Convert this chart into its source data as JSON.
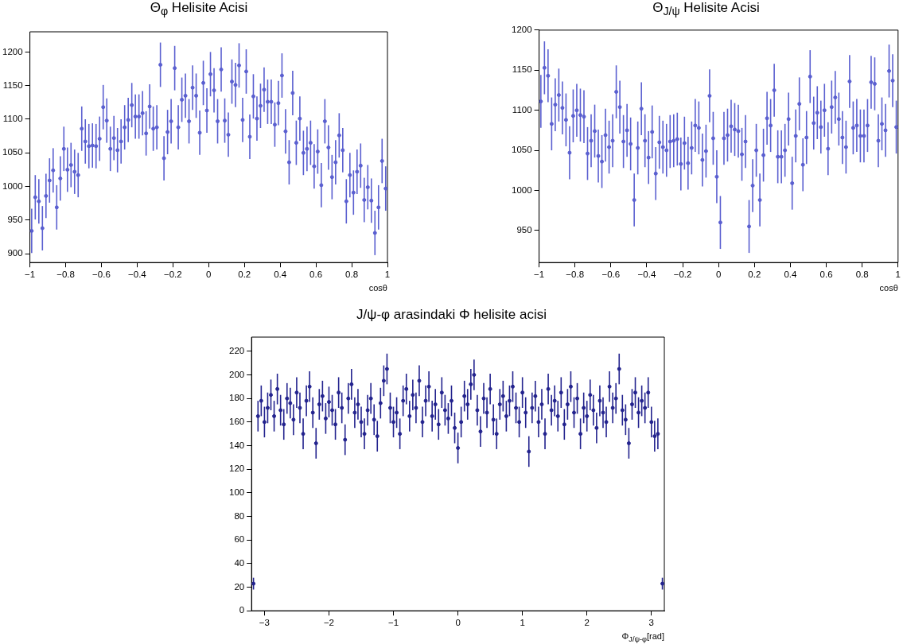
{
  "chart_data": [
    {
      "type": "scatter",
      "title": "Θ$_{φ}$ Helisite Acisi",
      "xlabel": "cosθ",
      "color": "#5a5fd0",
      "marker": "circle",
      "grid": false,
      "legend": false,
      "xlim": [
        -1,
        1
      ],
      "xticks": [
        {
          "value": -1,
          "label": "−1"
        },
        {
          "value": -0.8,
          "label": "−0.8"
        },
        {
          "value": -0.6,
          "label": "−0.6"
        },
        {
          "value": -0.4,
          "label": "−0.4"
        },
        {
          "value": -0.2,
          "label": "−0.2"
        },
        0,
        0.2,
        0.4,
        0.6,
        0.8,
        1
      ],
      "ylim": [
        887,
        1230
      ],
      "yticks": [
        900,
        950,
        1000,
        1050,
        1100,
        1150,
        1200
      ],
      "x": [
        -0.99,
        -0.97,
        -0.95,
        -0.93,
        -0.91,
        -0.89,
        -0.87,
        -0.85,
        -0.83,
        -0.81,
        -0.79,
        -0.77,
        -0.75,
        -0.73,
        -0.71,
        -0.69,
        -0.67,
        -0.65,
        -0.63,
        -0.61,
        -0.59,
        -0.57,
        -0.55,
        -0.53,
        -0.51,
        -0.49,
        -0.47,
        -0.45,
        -0.43,
        -0.41,
        -0.39,
        -0.37,
        -0.35,
        -0.33,
        -0.31,
        -0.29,
        -0.27,
        -0.25,
        -0.23,
        -0.21,
        -0.19,
        -0.17,
        -0.15,
        -0.13,
        -0.11,
        -0.09,
        -0.07,
        -0.05,
        -0.03,
        -0.01,
        0.01,
        0.03,
        0.05,
        0.07,
        0.09,
        0.11,
        0.13,
        0.15,
        0.17,
        0.19,
        0.21,
        0.23,
        0.25,
        0.27,
        0.29,
        0.31,
        0.33,
        0.35,
        0.37,
        0.39,
        0.41,
        0.43,
        0.45,
        0.47,
        0.49,
        0.51,
        0.53,
        0.55,
        0.57,
        0.59,
        0.61,
        0.63,
        0.65,
        0.67,
        0.69,
        0.71,
        0.73,
        0.75,
        0.77,
        0.79,
        0.81,
        0.83,
        0.85,
        0.87,
        0.89,
        0.91,
        0.93,
        0.95,
        0.97,
        0.99
      ],
      "values": [
        934,
        984,
        978,
        938,
        986,
        1009,
        1024,
        969,
        1012,
        1056,
        1025,
        1032,
        1022,
        1017,
        1086,
        1067,
        1060,
        1061,
        1060,
        1071,
        1118,
        1098,
        1056,
        1072,
        1054,
        1067,
        1088,
        1099,
        1121,
        1104,
        1104,
        1109,
        1079,
        1119,
        1086,
        1088,
        1181,
        1042,
        1081,
        1097,
        1176,
        1088,
        1129,
        1135,
        1097,
        1147,
        1135,
        1080,
        1154,
        1113,
        1167,
        1143,
        1097,
        1174,
        1098,
        1077,
        1156,
        1151,
        1180,
        1099,
        1171,
        1074,
        1134,
        1101,
        1120,
        1144,
        1126,
        1126,
        1092,
        1124,
        1165,
        1082,
        1036,
        1139,
        1065,
        1101,
        1050,
        1056,
        1065,
        1030,
        1052,
        1002,
        1097,
        1058,
        1014,
        1036,
        1076,
        1054,
        978,
        1017,
        991,
        1022,
        1031,
        980,
        999,
        979,
        931,
        969,
        1038,
        997
      ],
      "errors": [
        33,
        33,
        33,
        33,
        33,
        33,
        33,
        33,
        33,
        33,
        33,
        33,
        33,
        33,
        33,
        33,
        33,
        33,
        33,
        33,
        33,
        33,
        33,
        33,
        33,
        33,
        33,
        33,
        33,
        33,
        33,
        33,
        33,
        33,
        33,
        33,
        33,
        33,
        33,
        33,
        33,
        33,
        33,
        33,
        33,
        33,
        33,
        33,
        33,
        33,
        33,
        33,
        33,
        33,
        33,
        33,
        33,
        33,
        33,
        33,
        33,
        33,
        33,
        33,
        33,
        33,
        33,
        33,
        33,
        33,
        33,
        33,
        33,
        33,
        33,
        33,
        33,
        33,
        33,
        33,
        33,
        33,
        33,
        33,
        33,
        33,
        33,
        33,
        33,
        33,
        33,
        33,
        33,
        33,
        33,
        33,
        33,
        33,
        33,
        33
      ]
    },
    {
      "type": "scatter",
      "title": "Θ$_{J/ψ}$ Helisite Acisi",
      "xlabel": "cosθ",
      "color": "#5a5fd0",
      "marker": "circle",
      "grid": false,
      "legend": false,
      "xlim": [
        -1,
        1
      ],
      "xticks": [
        {
          "value": -1,
          "label": "−1"
        },
        {
          "value": -0.8,
          "label": "−0.8"
        },
        {
          "value": -0.6,
          "label": "−0.6"
        },
        {
          "value": -0.4,
          "label": "−0.4"
        },
        {
          "value": -0.2,
          "label": "−0.2"
        },
        0,
        0.2,
        0.4,
        0.6,
        0.8,
        1
      ],
      "ylim": [
        910,
        1200
      ],
      "yticks": [
        950,
        1000,
        1050,
        1100,
        1150,
        1200
      ],
      "x": [
        -0.99,
        -0.97,
        -0.95,
        -0.93,
        -0.91,
        -0.89,
        -0.87,
        -0.85,
        -0.83,
        -0.81,
        -0.79,
        -0.77,
        -0.75,
        -0.73,
        -0.71,
        -0.69,
        -0.67,
        -0.65,
        -0.63,
        -0.61,
        -0.59,
        -0.57,
        -0.55,
        -0.53,
        -0.51,
        -0.49,
        -0.47,
        -0.45,
        -0.43,
        -0.41,
        -0.39,
        -0.37,
        -0.35,
        -0.33,
        -0.31,
        -0.29,
        -0.27,
        -0.25,
        -0.23,
        -0.21,
        -0.19,
        -0.17,
        -0.15,
        -0.13,
        -0.11,
        -0.09,
        -0.07,
        -0.05,
        -0.03,
        -0.01,
        0.01,
        0.03,
        0.05,
        0.07,
        0.09,
        0.11,
        0.13,
        0.15,
        0.17,
        0.19,
        0.21,
        0.23,
        0.25,
        0.27,
        0.29,
        0.31,
        0.33,
        0.35,
        0.37,
        0.39,
        0.41,
        0.43,
        0.45,
        0.47,
        0.49,
        0.51,
        0.53,
        0.55,
        0.57,
        0.59,
        0.61,
        0.63,
        0.65,
        0.67,
        0.69,
        0.71,
        0.73,
        0.75,
        0.77,
        0.79,
        0.81,
        0.83,
        0.85,
        0.87,
        0.89,
        0.91,
        0.93,
        0.95,
        0.97,
        0.99
      ],
      "values": [
        1111,
        1153,
        1143,
        1083,
        1107,
        1119,
        1103,
        1088,
        1047,
        1093,
        1100,
        1094,
        1092,
        1046,
        1062,
        1074,
        1043,
        1036,
        1069,
        1054,
        1062,
        1123,
        1104,
        1061,
        1075,
        1058,
        988,
        1053,
        1102,
        1062,
        1041,
        1073,
        1021,
        1060,
        1054,
        1050,
        1061,
        1062,
        1064,
        1033,
        1059,
        1034,
        1053,
        1081,
        1078,
        1038,
        1049,
        1118,
        1065,
        1017,
        960,
        1065,
        1069,
        1080,
        1076,
        1074,
        1045,
        1061,
        955,
        1006,
        1050,
        988,
        1044,
        1090,
        1081,
        1125,
        1042,
        1042,
        1050,
        1089,
        1009,
        1068,
        1108,
        1032,
        1066,
        1142,
        1084,
        1097,
        1079,
        1100,
        1052,
        1104,
        1116,
        1089,
        1066,
        1054,
        1136,
        1078,
        1081,
        1068,
        1068,
        1081,
        1135,
        1133,
        1062,
        1083,
        1075,
        1149,
        1137,
        1079
      ],
      "errors": [
        33,
        33,
        33,
        33,
        33,
        33,
        33,
        33,
        33,
        33,
        33,
        33,
        33,
        33,
        33,
        33,
        33,
        33,
        33,
        33,
        33,
        33,
        33,
        33,
        33,
        33,
        33,
        33,
        33,
        33,
        33,
        33,
        33,
        33,
        33,
        33,
        33,
        33,
        33,
        33,
        33,
        33,
        33,
        33,
        33,
        33,
        33,
        33,
        33,
        33,
        33,
        33,
        33,
        33,
        33,
        33,
        33,
        33,
        33,
        33,
        33,
        33,
        33,
        33,
        33,
        33,
        33,
        33,
        33,
        33,
        33,
        33,
        33,
        33,
        33,
        33,
        33,
        33,
        33,
        33,
        33,
        33,
        33,
        33,
        33,
        33,
        33,
        33,
        33,
        33,
        33,
        33,
        33,
        33,
        33,
        33,
        33,
        33,
        33,
        33
      ]
    },
    {
      "type": "scatter",
      "title": "J/ψ-φ arasindaki Φ helisite acisi",
      "xlabel": "Φ$_{J/ψ-φ}$[rad]",
      "color": "#23238e",
      "marker": "circle",
      "grid": false,
      "legend": false,
      "xlim": [
        -3.2,
        3.2
      ],
      "xticks": [
        {
          "value": -3,
          "label": "−3"
        },
        {
          "value": -2,
          "label": "−2"
        },
        {
          "value": -1,
          "label": "−1"
        },
        0,
        1,
        2,
        3
      ],
      "ylim": [
        0,
        232
      ],
      "yticks": [
        0,
        20,
        40,
        60,
        80,
        100,
        120,
        140,
        160,
        180,
        200,
        220
      ],
      "x": [
        -3.17,
        -3.1,
        -3.05,
        -3,
        -2.95,
        -2.9,
        -2.85,
        -2.8,
        -2.75,
        -2.7,
        -2.65,
        -2.6,
        -2.55,
        -2.5,
        -2.45,
        -2.4,
        -2.35,
        -2.3,
        -2.25,
        -2.2,
        -2.15,
        -2.1,
        -2.05,
        -2,
        -1.95,
        -1.9,
        -1.85,
        -1.8,
        -1.75,
        -1.7,
        -1.65,
        -1.6,
        -1.55,
        -1.5,
        -1.45,
        -1.4,
        -1.35,
        -1.3,
        -1.25,
        -1.2,
        -1.15,
        -1.1,
        -1.05,
        -1,
        -0.95,
        -0.9,
        -0.85,
        -0.8,
        -0.75,
        -0.7,
        -0.65,
        -0.6,
        -0.55,
        -0.5,
        -0.45,
        -0.4,
        -0.35,
        -0.3,
        -0.25,
        -0.2,
        -0.15,
        -0.1,
        -0.05,
        0,
        0.05,
        0.1,
        0.15,
        0.2,
        0.25,
        0.3,
        0.35,
        0.4,
        0.45,
        0.5,
        0.55,
        0.6,
        0.65,
        0.7,
        0.75,
        0.8,
        0.85,
        0.9,
        0.95,
        1,
        1.05,
        1.1,
        1.15,
        1.2,
        1.25,
        1.3,
        1.35,
        1.4,
        1.45,
        1.5,
        1.55,
        1.6,
        1.65,
        1.7,
        1.75,
        1.8,
        1.85,
        1.9,
        1.95,
        2,
        2.05,
        2.1,
        2.15,
        2.2,
        2.25,
        2.3,
        2.35,
        2.4,
        2.45,
        2.5,
        2.55,
        2.6,
        2.65,
        2.7,
        2.75,
        2.8,
        2.85,
        2.9,
        2.95,
        3,
        3.05,
        3.1,
        3.17
      ],
      "values": [
        23,
        165,
        178,
        160,
        172,
        183,
        165,
        188,
        170,
        158,
        180,
        176,
        162,
        185,
        172,
        150,
        178,
        190,
        168,
        142,
        175,
        182,
        163,
        177,
        170,
        158,
        185,
        172,
        145,
        180,
        192,
        168,
        175,
        160,
        150,
        170,
        180,
        162,
        148,
        176,
        195,
        205,
        172,
        160,
        168,
        150,
        178,
        188,
        165,
        183,
        172,
        195,
        160,
        178,
        190,
        165,
        175,
        158,
        185,
        170,
        163,
        178,
        155,
        138,
        160,
        182,
        175,
        192,
        200,
        170,
        152,
        180,
        168,
        188,
        162,
        150,
        175,
        182,
        165,
        178,
        190,
        172,
        160,
        185,
        168,
        135,
        172,
        182,
        160,
        175,
        150,
        188,
        170,
        178,
        165,
        185,
        158,
        175,
        190,
        168,
        180,
        150,
        172,
        165,
        183,
        170,
        155,
        178,
        168,
        160,
        190,
        172,
        180,
        205,
        170,
        162,
        142,
        175,
        185,
        168,
        178,
        172,
        185,
        160,
        148,
        150,
        23
      ],
      "errors": [
        5,
        13,
        13,
        13,
        13,
        13,
        13,
        13,
        13,
        13,
        13,
        13,
        13,
        13,
        13,
        13,
        13,
        13,
        13,
        13,
        13,
        13,
        13,
        13,
        13,
        13,
        13,
        13,
        13,
        13,
        13,
        13,
        13,
        13,
        13,
        13,
        13,
        13,
        13,
        13,
        13,
        13,
        13,
        13,
        13,
        13,
        13,
        13,
        13,
        13,
        13,
        13,
        13,
        13,
        13,
        13,
        13,
        13,
        13,
        13,
        13,
        13,
        13,
        13,
        13,
        13,
        13,
        13,
        13,
        13,
        13,
        13,
        13,
        13,
        13,
        13,
        13,
        13,
        13,
        13,
        13,
        13,
        13,
        13,
        13,
        13,
        13,
        13,
        13,
        13,
        13,
        13,
        13,
        13,
        13,
        13,
        13,
        13,
        13,
        13,
        13,
        13,
        13,
        13,
        13,
        13,
        13,
        13,
        13,
        13,
        13,
        13,
        13,
        13,
        13,
        13,
        13,
        13,
        13,
        13,
        13,
        13,
        13,
        13,
        13,
        13,
        5
      ]
    }
  ]
}
